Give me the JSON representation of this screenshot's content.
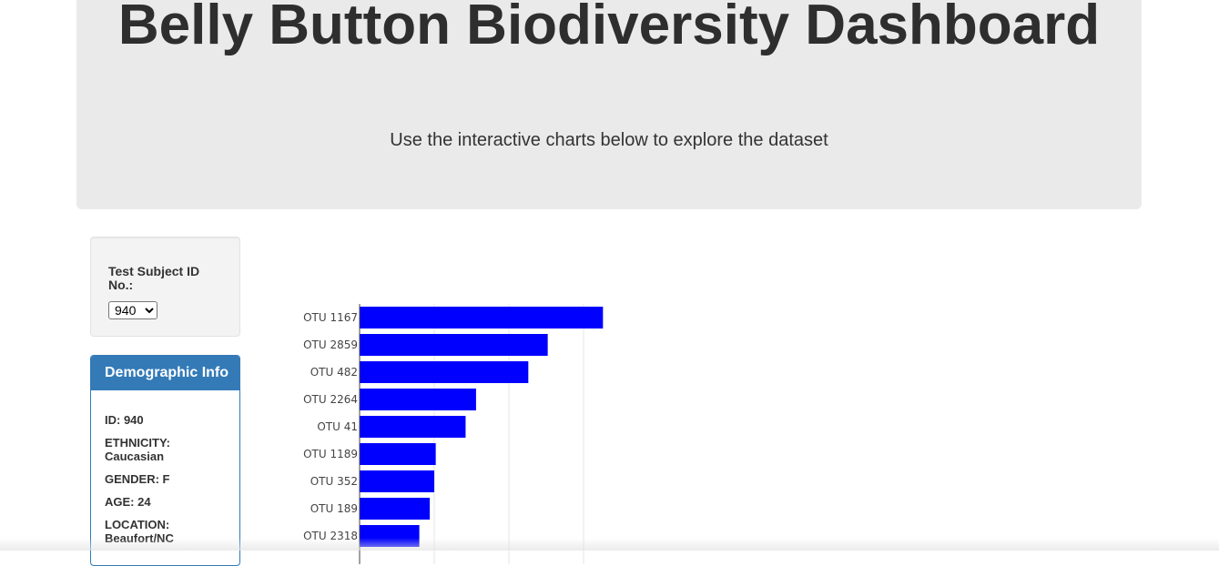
{
  "header": {
    "title": "Belly Button Biodiversity Dashboard",
    "subtitle": "Use the interactive charts below to explore the dataset"
  },
  "selector": {
    "label": "Test Subject ID No.:",
    "selected": "940"
  },
  "demographics": {
    "heading": "Demographic Info",
    "rows": [
      "ID: 940",
      "ETHNICITY: Caucasian",
      "GENDER: F",
      "AGE: 24",
      "LOCATION: Beaufort/NC"
    ]
  },
  "chart_data": {
    "type": "bar",
    "orientation": "horizontal",
    "categories": [
      "OTU 1167",
      "OTU 2859",
      "OTU 482",
      "OTU 2264",
      "OTU 41",
      "OTU 1189",
      "OTU 352",
      "OTU 189",
      "OTU 2318"
    ],
    "values": [
      163,
      126,
      113,
      78,
      71,
      51,
      50,
      47,
      40
    ],
    "xlim": [
      0,
      200
    ],
    "grid": true,
    "colors": {
      "bar": "#0000ff",
      "grid": "#e6e6e6"
    }
  }
}
